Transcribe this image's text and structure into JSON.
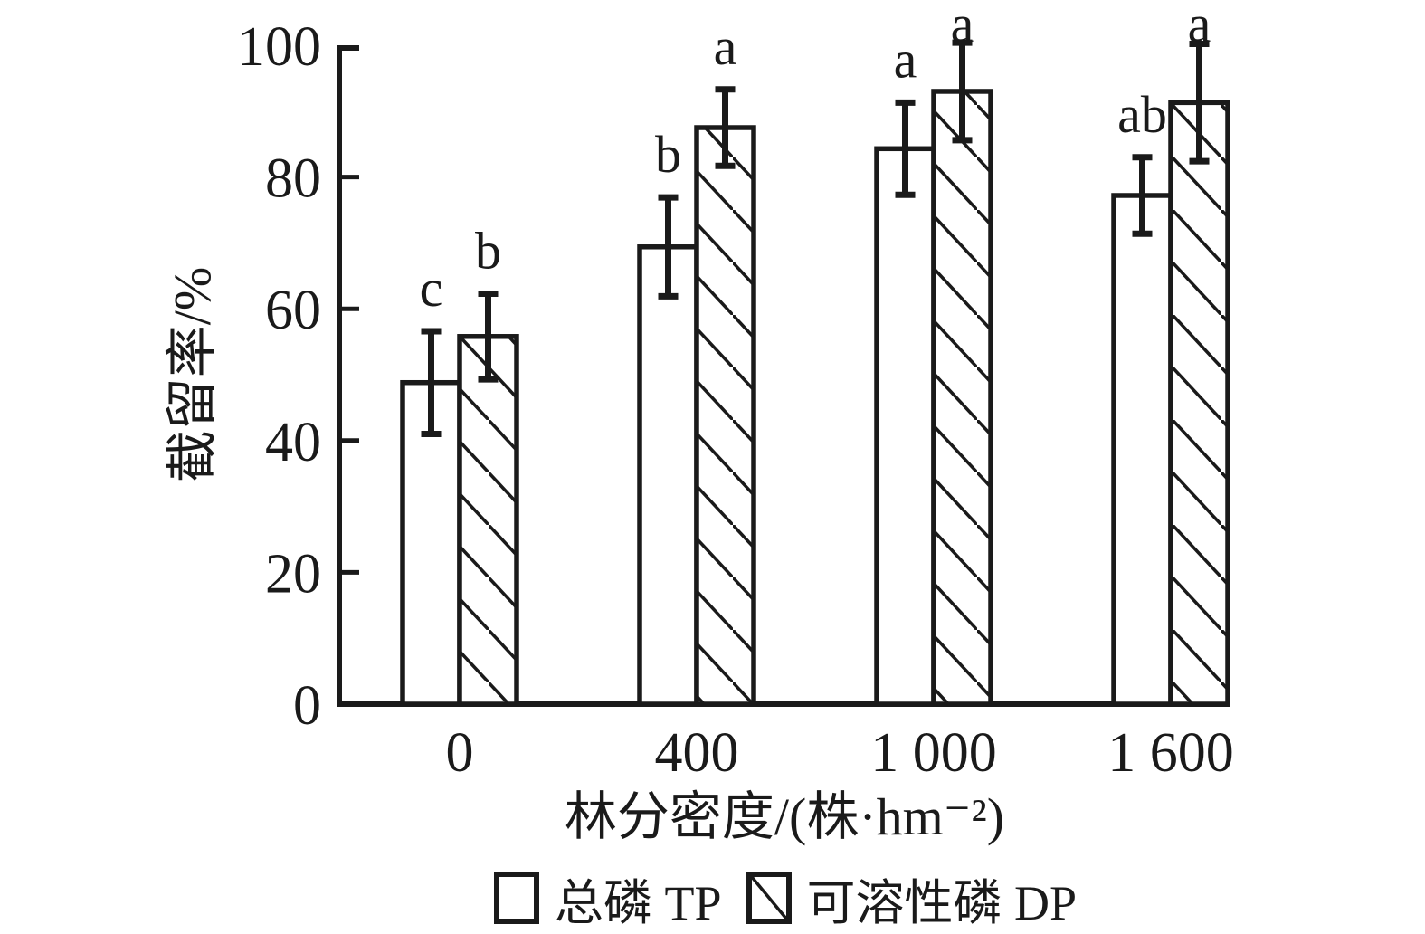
{
  "chart_data": {
    "type": "bar",
    "title": "",
    "xlabel": "林分密度/(株·hm⁻²)",
    "ylabel": "截留率/%",
    "categories": [
      "0",
      "400",
      "1 000",
      "1 600"
    ],
    "ylim": [
      0,
      100
    ],
    "yticks": [
      0,
      20,
      40,
      60,
      80,
      100
    ],
    "grid": false,
    "legend_position": "bottom",
    "error_bars": true,
    "series": [
      {
        "name": "总磷 TP",
        "fill": "white",
        "values": [
          48.8,
          69.4,
          84.3,
          77.2
        ],
        "errors": [
          7.8,
          7.5,
          7.0,
          5.8
        ],
        "sig_letters": [
          "c",
          "b",
          "a",
          "ab"
        ]
      },
      {
        "name": "可溶性磷 DP",
        "fill": "hatch-diagonal",
        "values": [
          55.8,
          87.5,
          93.0,
          91.3
        ],
        "errors": [
          6.5,
          5.8,
          7.4,
          8.9
        ],
        "sig_letters": [
          "b",
          "a",
          "a",
          "a"
        ]
      }
    ],
    "colors": {
      "ink": "#1a1a1a",
      "background": "#ffffff"
    }
  }
}
